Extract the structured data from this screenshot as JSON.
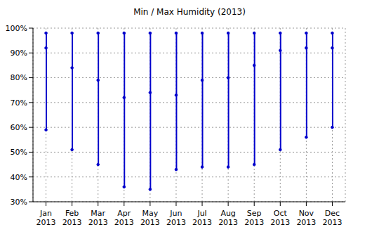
{
  "chart_data": {
    "type": "range",
    "title": "Min / Max Humidity (2013)",
    "categories": [
      "Jan 2013",
      "Feb 2013",
      "Mar 2013",
      "Apr 2013",
      "May 2013",
      "Jun 2013",
      "Jul 2013",
      "Aug 2013",
      "Sep 2013",
      "Oct 2013",
      "Nov 2013",
      "Dec 2013"
    ],
    "max": [
      98,
      98,
      98,
      98,
      98,
      98,
      98,
      98,
      98,
      98,
      98,
      98
    ],
    "values": [
      92,
      84,
      79,
      72,
      74,
      73,
      79,
      80,
      85,
      91,
      92,
      92
    ],
    "min": [
      59,
      51,
      45,
      36,
      35,
      43,
      44,
      44,
      45,
      51,
      56,
      60
    ],
    "color": "#0000cc",
    "ylim": [
      30,
      100
    ],
    "yticks": [
      {
        "value": 30,
        "label": "30%"
      },
      {
        "value": 40,
        "label": "40%"
      },
      {
        "value": 50,
        "label": "50%"
      },
      {
        "value": 60,
        "label": "60%"
      },
      {
        "value": 70,
        "label": "70%"
      },
      {
        "value": 80,
        "label": "80%"
      },
      {
        "value": 90,
        "label": "90%"
      },
      {
        "value": 100,
        "label": "100%"
      }
    ],
    "grid": true
  }
}
